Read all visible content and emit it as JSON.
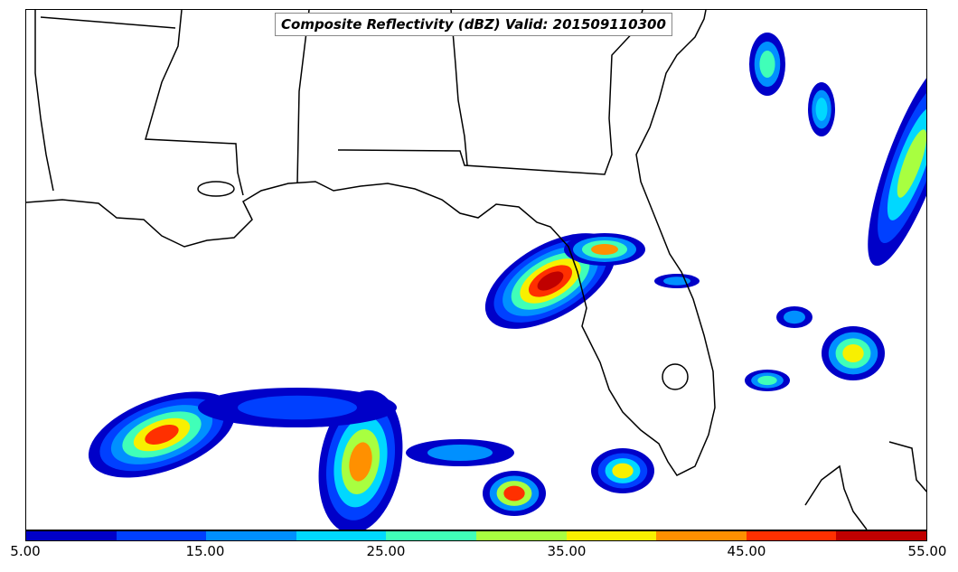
{
  "title": "Composite Reflectivity (dBZ) Valid: 201509110300",
  "colorbar": {
    "ticks": [
      "5.00",
      "15.00",
      "25.00",
      "35.00",
      "45.00",
      "55.00"
    ],
    "tick_values": [
      5,
      15,
      25,
      35,
      45,
      55
    ],
    "range": [
      5,
      55
    ],
    "colors": [
      "#0000c8",
      "#0040ff",
      "#0090ff",
      "#00d8ff",
      "#40ffb8",
      "#a8ff40",
      "#f8f000",
      "#ff9000",
      "#ff3000",
      "#c00000"
    ]
  },
  "colors": {
    "coastline": "#000000",
    "background": "#ffffff"
  }
}
